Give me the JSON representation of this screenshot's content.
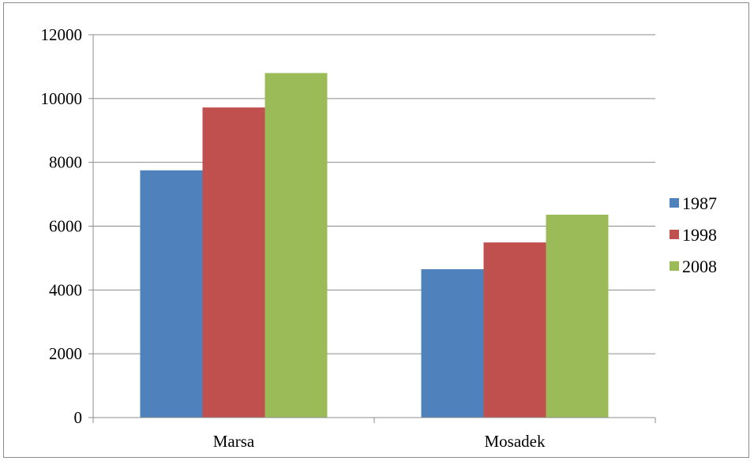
{
  "chart_data": {
    "type": "bar",
    "title": "",
    "xlabel": "",
    "ylabel": "",
    "categories": [
      "Marsa",
      "Mosadek"
    ],
    "series": [
      {
        "name": "1987",
        "values": [
          7750,
          4650
        ],
        "color": "#4f81bd"
      },
      {
        "name": "1998",
        "values": [
          9720,
          5490
        ],
        "color": "#c0504d"
      },
      {
        "name": "2008",
        "values": [
          10800,
          6360
        ],
        "color": "#9bbb59"
      }
    ],
    "ylim": [
      0,
      12000
    ],
    "yticks": [
      0,
      2000,
      4000,
      6000,
      8000,
      10000,
      12000
    ],
    "grid": true,
    "legend_position": "right"
  }
}
